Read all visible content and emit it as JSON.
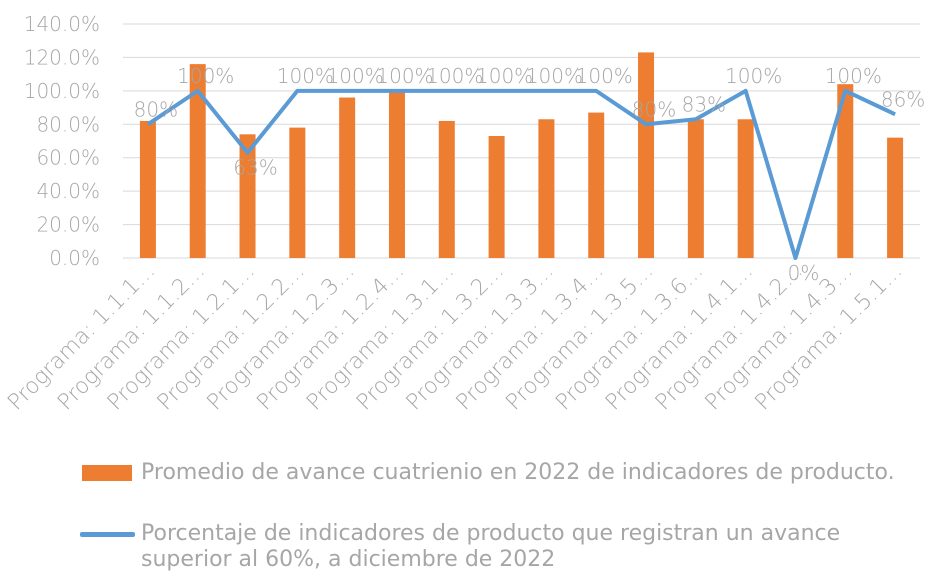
{
  "chart_data": {
    "type": "bar-line",
    "categories": [
      "Programa: 1.1.1...",
      "Programa: 1.1.2...",
      "Programa: 1.2.1...",
      "Programa: 1.2.2...",
      "Programa: 1.2.3...",
      "Programa: 1.2.4...",
      "Programa: 1.3.1...",
      "Programa: 1.3.2...",
      "Programa: 1.3.3...",
      "Programa: 1.3.4...",
      "Programa: 1.3.5...",
      "Programa: 1.3.6...",
      "Programa: 1.4.1...",
      "Programa: 1.4.2...",
      "Programa: 1.4.3...",
      "Programa: 1.5.1..."
    ],
    "series": [
      {
        "name": "Promedio de avance cuatrienio en 2022 de indicadores de producto.",
        "type": "bar",
        "color": "#ed7d31",
        "values": [
          82,
          116,
          74,
          78,
          96,
          99,
          82,
          73,
          83,
          87,
          123,
          83,
          83,
          0,
          104,
          72
        ]
      },
      {
        "name": "Porcentaje de indicadores de producto que registran un avance superior al 60%, a diciembre de 2022",
        "type": "line",
        "color": "#5b9bd5",
        "values": [
          80,
          100,
          63,
          100,
          100,
          100,
          100,
          100,
          100,
          100,
          80,
          83,
          100,
          0,
          100,
          86
        ],
        "value_labels": [
          "80%",
          "100%",
          "63%",
          "100%",
          "100%",
          "100%",
          "100%",
          "100%",
          "100%",
          "100%",
          "80%",
          "83%",
          "100%",
          "0%",
          "100%",
          "86%"
        ]
      }
    ],
    "ylim": [
      0,
      140
    ],
    "yticks": [
      {
        "value": 0,
        "label": "0.0%"
      },
      {
        "value": 20,
        "label": "20.0%"
      },
      {
        "value": 40,
        "label": "40.0%"
      },
      {
        "value": 60,
        "label": "60.0%"
      },
      {
        "value": 80,
        "label": "80.0%"
      },
      {
        "value": 100,
        "label": "100.0%"
      },
      {
        "value": 120,
        "label": "120.0%"
      },
      {
        "value": 140,
        "label": "140.0%"
      }
    ],
    "grid": true,
    "legend": "bottom"
  }
}
